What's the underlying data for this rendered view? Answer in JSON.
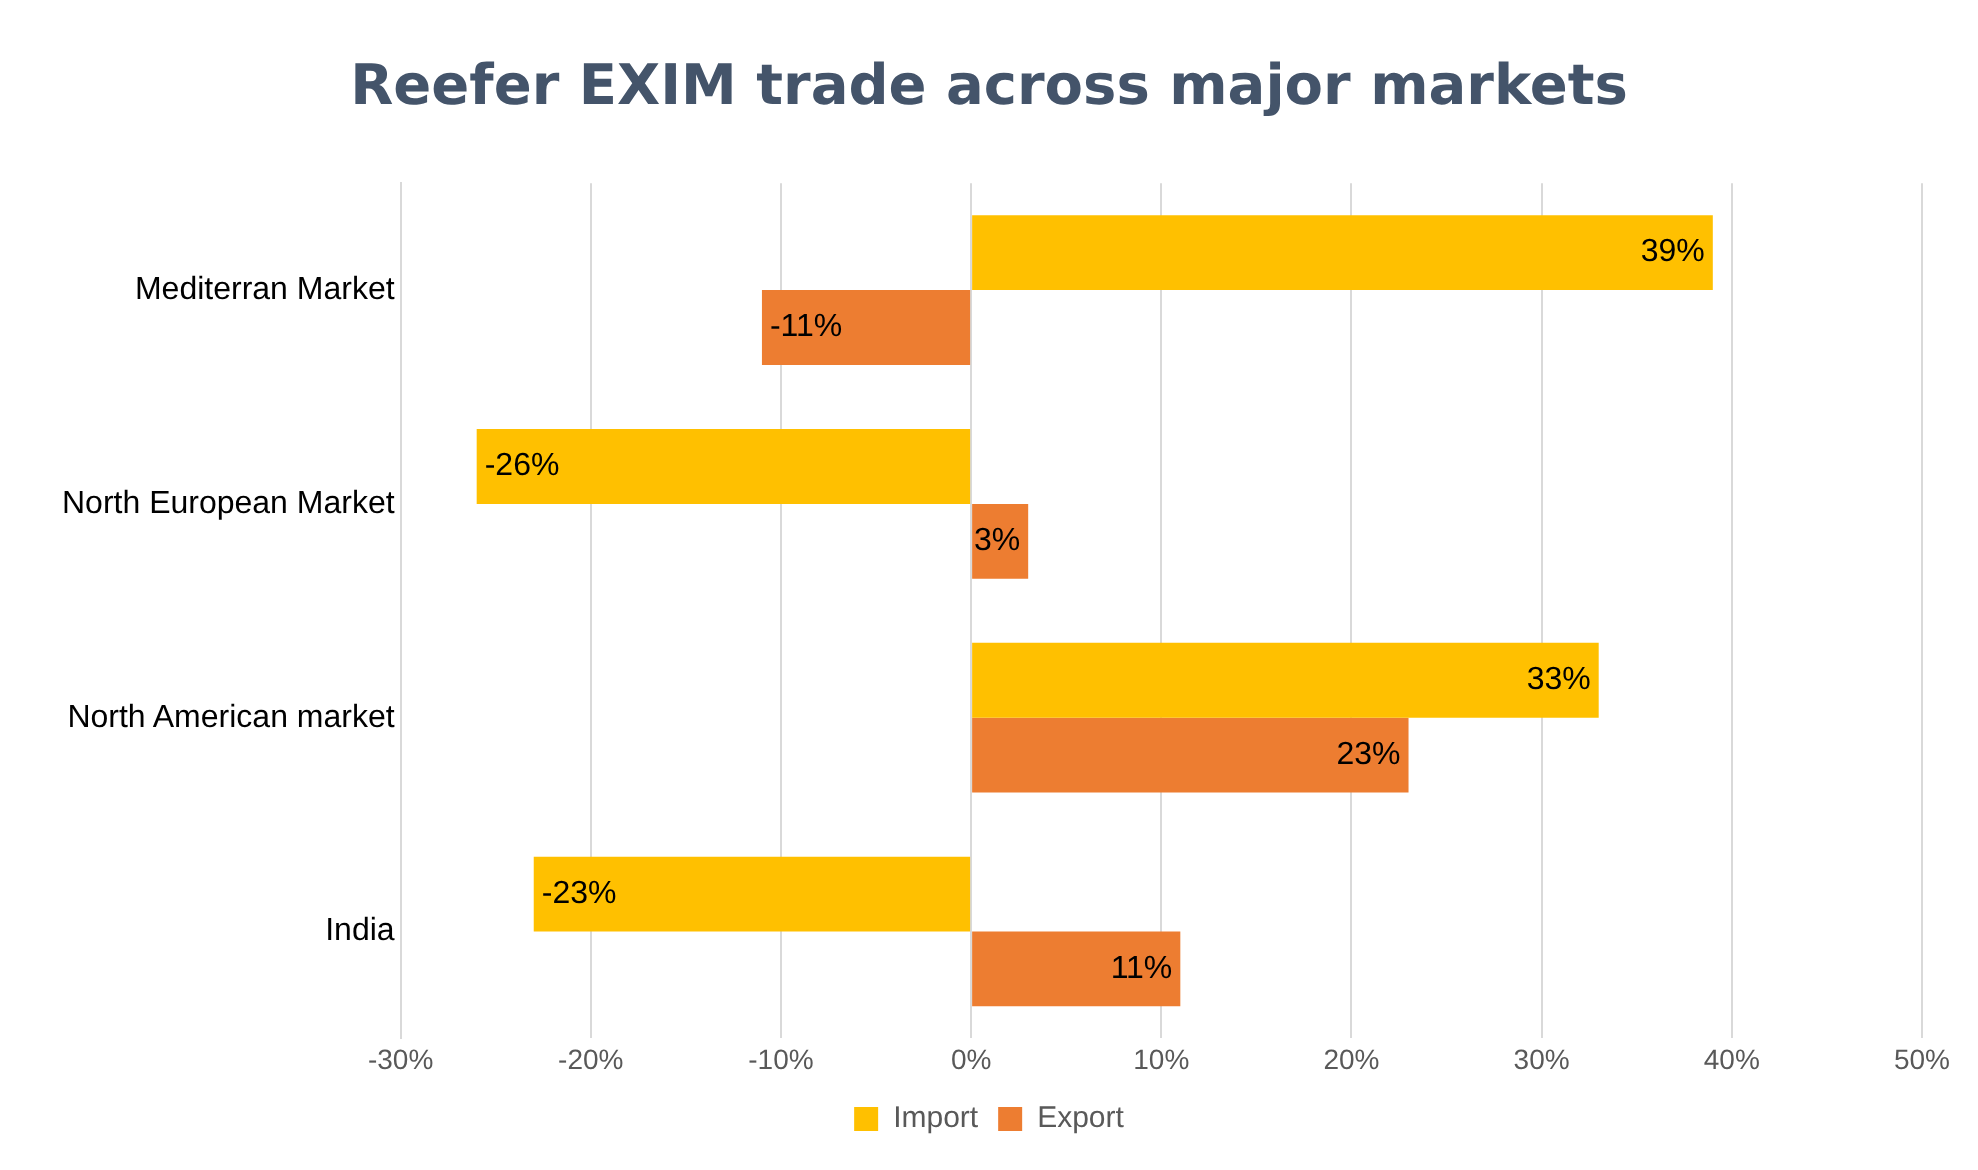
{
  "chart_data": {
    "type": "bar",
    "orientation": "horizontal",
    "title": "Reefer EXIM trade across major markets",
    "categories": [
      "Mediterran Market",
      "North European Market",
      "North American market",
      "India"
    ],
    "series": [
      {
        "name": "Import",
        "color": "#ffc000",
        "values": [
          39,
          -26,
          33,
          -23
        ]
      },
      {
        "name": "Export",
        "color": "#ed7d31",
        "values": [
          -11,
          3,
          23,
          11
        ]
      }
    ],
    "xlim": [
      -30,
      50
    ],
    "xticks": [
      {
        "value": -30,
        "label": "-30%"
      },
      {
        "value": -20,
        "label": "-20%"
      },
      {
        "value": -10,
        "label": "-10%"
      },
      {
        "value": 0,
        "label": "0%"
      },
      {
        "value": 10,
        "label": "10%"
      },
      {
        "value": 20,
        "label": "20%"
      },
      {
        "value": 30,
        "label": "30%"
      },
      {
        "value": 40,
        "label": "40%"
      },
      {
        "value": 50,
        "label": "50%"
      }
    ],
    "value_labels": [
      [
        "39%",
        "-26%",
        "33%",
        "-23%"
      ],
      [
        "-11%",
        "3%",
        "23%",
        "11%"
      ]
    ],
    "grid": "x",
    "legend": "bottom"
  }
}
